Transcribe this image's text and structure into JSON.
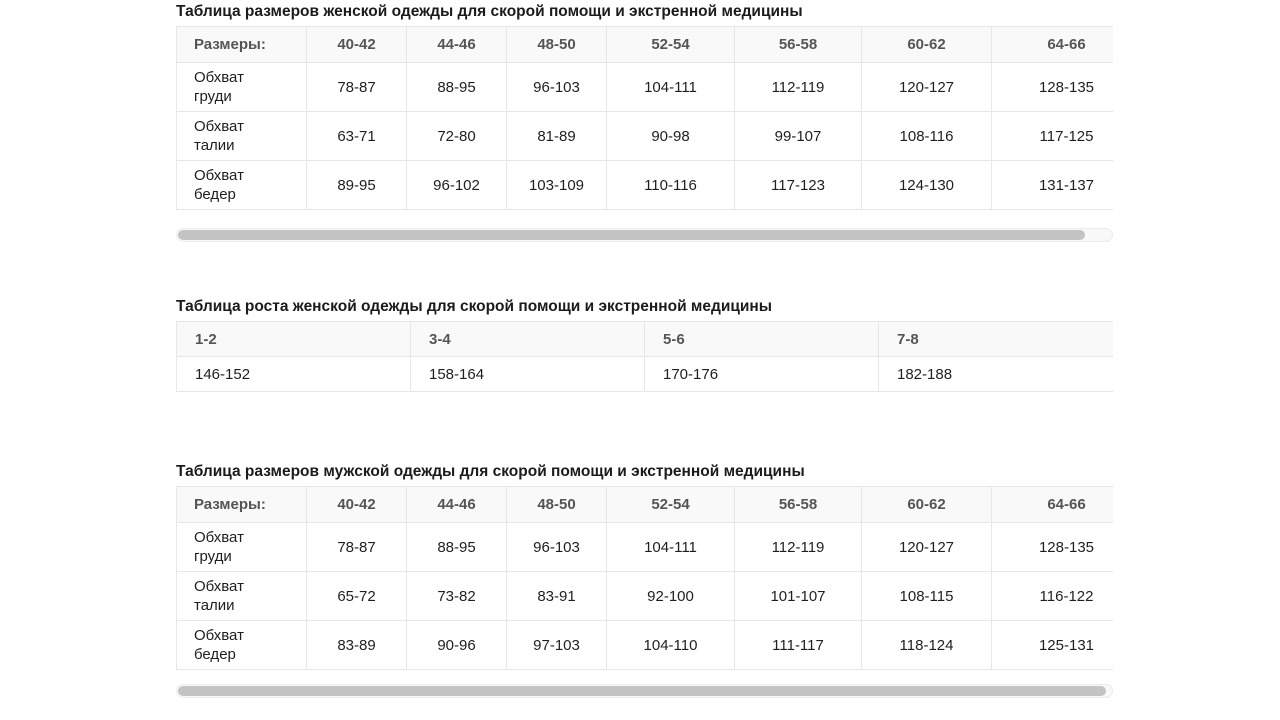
{
  "page": {
    "background": "#ffffff"
  },
  "colors": {
    "title_text": "#1b1b1b",
    "header_bg": "#f9f9f9",
    "header_text": "#555555",
    "cell_text": "#1f1f1f",
    "border": "#e7e7e7",
    "scrollbar_track": "#f8f8f8",
    "scrollbar_track_border": "#ececec",
    "scrollbar_thumb": "#c4c4c4"
  },
  "tables": [
    {
      "title": "Таблица размеров женской одежды для скорой помощи и экстренной медицины",
      "header": [
        "Размеры:",
        "40-42",
        "44-46",
        "48-50",
        "52-54",
        "56-58",
        "60-62",
        "64-66"
      ],
      "rows": [
        {
          "label": "Обхват груди",
          "values": [
            "78-87",
            "88-95",
            "96-103",
            "104-111",
            "112-119",
            "120-127",
            "128-135"
          ]
        },
        {
          "label": "Обхват талии",
          "values": [
            "63-71",
            "72-80",
            "81-89",
            "90-98",
            "99-107",
            "108-116",
            "117-125"
          ]
        },
        {
          "label": "Обхват бедер",
          "values": [
            "89-95",
            "96-102",
            "103-109",
            "110-116",
            "117-123",
            "124-130",
            "131-137"
          ]
        }
      ],
      "scrollbar": {
        "visible": true,
        "thumb_percent": 97
      }
    },
    {
      "title": "Таблица роста женской одежды для скорой помощи и экстренной медицины",
      "header": [
        "1-2",
        "3-4",
        "5-6",
        "7-8"
      ],
      "rows": [
        {
          "values": [
            "146-152",
            "158-164",
            "170-176",
            "182-188"
          ]
        }
      ],
      "scrollbar": {
        "visible": false
      }
    },
    {
      "title": "Таблица размеров мужской одежды для скорой помощи и экстренной медицины",
      "header": [
        "Размеры:",
        "40-42",
        "44-46",
        "48-50",
        "52-54",
        "56-58",
        "60-62",
        "64-66"
      ],
      "rows": [
        {
          "label": "Обхват груди",
          "values": [
            "78-87",
            "88-95",
            "96-103",
            "104-111",
            "112-119",
            "120-127",
            "128-135"
          ]
        },
        {
          "label": "Обхват талии",
          "values": [
            "65-72",
            "73-82",
            "83-91",
            "92-100",
            "101-107",
            "108-115",
            "116-122"
          ]
        },
        {
          "label": "Обхват бедер",
          "values": [
            "83-89",
            "90-96",
            "97-103",
            "104-110",
            "111-117",
            "118-124",
            "125-131"
          ]
        }
      ],
      "scrollbar": {
        "visible": true,
        "thumb_percent": 99.3
      }
    }
  ]
}
